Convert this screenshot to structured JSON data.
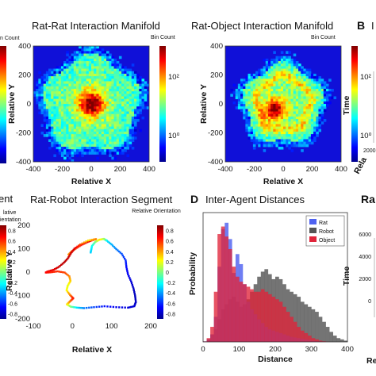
{
  "panel_letters": {
    "b": "B",
    "d": "D"
  },
  "chart_data": [
    {
      "type": "heatmap",
      "title": "Rat-Rat Interaction Manifold",
      "xlabel": "Relative X",
      "ylabel": "Relative Y",
      "xlim": [
        -400,
        400
      ],
      "ylim": [
        -400,
        400
      ],
      "xticks": [
        "-400",
        "-200",
        "0",
        "200",
        "400"
      ],
      "yticks": [
        "400",
        "200",
        "0",
        "-200",
        "-400"
      ],
      "colorbar_label": "Bin Count",
      "colorbar_ticks": [
        "10²",
        "10⁰"
      ],
      "colorscale": "log",
      "description_values": {
        "peak_center": [
          0,
          0
        ],
        "radius": 360
      }
    },
    {
      "type": "heatmap",
      "title": "Rat-Object Interaction Manifold",
      "xlabel": "Relative X",
      "ylabel": "Relative Y",
      "xlim": [
        -400,
        400
      ],
      "ylim": [
        -400,
        400
      ],
      "xticks": [
        "-400",
        "-200",
        "0",
        "200",
        "400"
      ],
      "yticks": [
        "400",
        "200",
        "0",
        "-200",
        "-400"
      ],
      "colorbar_label": "Bin Count",
      "colorbar_ticks": [
        "10²",
        "10⁰"
      ],
      "colorscale": "log",
      "description_values": {
        "peak_center": [
          -60,
          -40
        ],
        "radius": 300
      }
    },
    {
      "type": "scatter",
      "title": "Rat-Robot Interaction Segment",
      "xlabel": "Relative X",
      "ylabel": "Relative Y",
      "xlim": [
        -100,
        200
      ],
      "ylim": [
        -200,
        200
      ],
      "xticks": [
        "-100",
        "0",
        "100",
        "200"
      ],
      "yticks": [
        "200",
        "100",
        "0",
        "-100",
        "-200"
      ],
      "colorbar_label": "Relative Orientation",
      "colorbar_ticks": [
        "0.8",
        "0.6",
        "0.4",
        "0.2",
        "0",
        "-0.2",
        "-0.4",
        "-0.6",
        "-0.8"
      ],
      "path": [
        [
          -10,
          75
        ],
        [
          -2,
          88
        ],
        [
          8,
          100
        ],
        [
          22,
          115
        ],
        [
          38,
          128
        ],
        [
          52,
          137
        ],
        [
          60,
          141
        ],
        [
          40,
          135
        ],
        [
          20,
          118
        ],
        [
          5,
          100
        ],
        [
          -4,
          80
        ],
        [
          -12,
          58
        ],
        [
          -22,
          40
        ],
        [
          -35,
          22
        ],
        [
          -48,
          10
        ],
        [
          -62,
          3
        ],
        [
          -68,
          -2
        ],
        [
          -56,
          -1
        ],
        [
          -38,
          3
        ],
        [
          -20,
          -2
        ],
        [
          -8,
          -18
        ],
        [
          -5,
          -38
        ],
        [
          -12,
          -58
        ],
        [
          -15,
          -78
        ],
        [
          -6,
          -98
        ],
        [
          2,
          -112
        ],
        [
          -6,
          -125
        ],
        [
          -14,
          -138
        ],
        [
          -4,
          -148
        ],
        [
          12,
          -152
        ],
        [
          30,
          -154
        ],
        [
          55,
          -150
        ],
        [
          82,
          -146
        ],
        [
          112,
          -150
        ],
        [
          142,
          -152
        ],
        [
          158,
          -146
        ],
        [
          162,
          -128
        ],
        [
          160,
          -100
        ],
        [
          156,
          -70
        ],
        [
          150,
          -40
        ],
        [
          142,
          -10
        ],
        [
          138,
          20
        ],
        [
          136,
          50
        ],
        [
          126,
          78
        ],
        [
          112,
          98
        ],
        [
          100,
          118
        ],
        [
          88,
          134
        ],
        [
          80,
          142
        ],
        [
          68,
          138
        ],
        [
          58,
          128
        ],
        [
          50,
          112
        ],
        [
          48,
          95
        ],
        [
          46,
          80
        ]
      ],
      "orientation": [
        0.45,
        0.55,
        0.62,
        0.72,
        0.8,
        0.7,
        0.5,
        0.3,
        0.6,
        0.82,
        0.84,
        0.86,
        0.88,
        0.85,
        0.8,
        0.78,
        0.75,
        0.7,
        0.66,
        0.62,
        0.5,
        0.35,
        0.2,
        0.25,
        0.5,
        0.72,
        0.55,
        0.3,
        0.0,
        -0.3,
        -0.5,
        -0.62,
        -0.72,
        -0.78,
        -0.82,
        -0.84,
        -0.86,
        -0.88,
        -0.86,
        -0.82,
        -0.78,
        -0.74,
        -0.68,
        -0.6,
        -0.5,
        -0.4,
        -0.3,
        0.05,
        0.3,
        0.0,
        -0.2,
        -0.3,
        -0.35
      ]
    },
    {
      "type": "bar",
      "title": "Inter-Agent Distances",
      "xlabel": "Distance",
      "ylabel": "Probability",
      "xlim": [
        0,
        400
      ],
      "xticks": [
        "0",
        "100",
        "200",
        "300",
        "400"
      ],
      "bin_width": 10,
      "series": [
        {
          "name": "Rat",
          "color": "#4f62f0",
          "values": [
            0.004,
            0.02,
            0.06,
            0.2,
            0.6,
            0.9,
            0.95,
            0.82,
            0.55,
            0.7,
            0.62,
            0.46,
            0.32,
            0.26,
            0.22,
            0.18,
            0.15,
            0.12,
            0.1,
            0.09,
            0.08,
            0.07,
            0.06,
            0.05,
            0.04,
            0.035,
            0.03,
            0.025,
            0.02,
            0.015,
            0.01,
            0.006,
            0.004,
            0.002,
            0.001,
            0.0,
            0.0,
            0.0,
            0.0,
            0.0
          ]
        },
        {
          "name": "Robot",
          "color": "#555555",
          "values": [
            0.0,
            0.02,
            0.06,
            0.1,
            0.18,
            0.26,
            0.3,
            0.34,
            0.36,
            0.32,
            0.28,
            0.3,
            0.34,
            0.4,
            0.46,
            0.52,
            0.56,
            0.58,
            0.54,
            0.5,
            0.52,
            0.5,
            0.46,
            0.42,
            0.4,
            0.38,
            0.36,
            0.32,
            0.3,
            0.28,
            0.26,
            0.24,
            0.2,
            0.16,
            0.12,
            0.08,
            0.05,
            0.03,
            0.02,
            0.01
          ]
        },
        {
          "name": "Object",
          "color": "#e0243a",
          "values": [
            0.004,
            0.03,
            0.12,
            0.4,
            0.86,
            0.92,
            0.84,
            0.74,
            0.6,
            0.52,
            0.48,
            0.46,
            0.44,
            0.42,
            0.4,
            0.4,
            0.42,
            0.4,
            0.38,
            0.36,
            0.34,
            0.32,
            0.28,
            0.24,
            0.2,
            0.16,
            0.12,
            0.09,
            0.07,
            0.05,
            0.03,
            0.02,
            0.01,
            0.005,
            0.002,
            0.0,
            0.0,
            0.0,
            0.0,
            0.0
          ]
        }
      ],
      "legend_position": "top-right"
    },
    {
      "type": "scatter",
      "title": "Ra",
      "ylabel": "Time",
      "yticks": [
        "6000",
        "4000",
        "2000",
        "0"
      ],
      "partial": true
    },
    {
      "type": "scatter",
      "title": "I",
      "ylabel": "Time",
      "ticks": [
        "2000"
      ],
      "partial": true
    }
  ],
  "left_partials": {
    "top_label": "n Count",
    "bottom_title": "ent",
    "bottom_label_1": "lative",
    "bottom_label_2": "ientation",
    "bottom_ticks": [
      "0.8",
      "0.6",
      "0.4",
      "0.2",
      "0",
      "-0.2",
      "-0.4",
      "-0.6",
      "-0.8"
    ],
    "cut_axis_label_top": "Rela",
    "cut_axis_label_bottom": "Re"
  }
}
